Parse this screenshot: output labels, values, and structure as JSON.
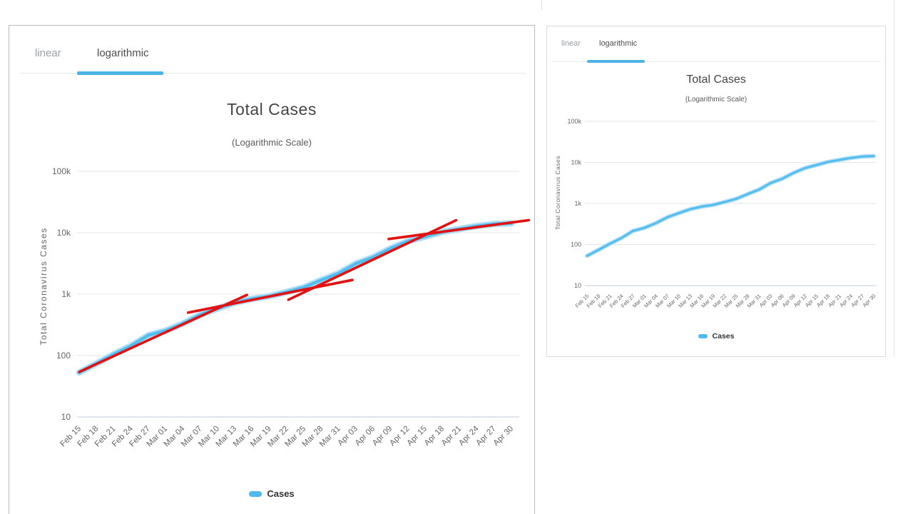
{
  "panels": {
    "left": {
      "tabs": [
        {
          "label": "linear",
          "active": false
        },
        {
          "label": "logarithmic",
          "active": true
        }
      ],
      "title": "Total Cases",
      "subtitle": "(Logarithmic Scale)",
      "y_axis_label": "Total Coronavirus Cases",
      "legend_label": "Cases"
    },
    "right": {
      "tabs": [
        {
          "label": "linear",
          "active": false
        },
        {
          "label": "logarithmic",
          "active": true
        }
      ],
      "title": "Total Cases",
      "subtitle": "(Logarithmic Scale)",
      "y_axis_label": "Total Coronavirus Cases",
      "legend_label": "Cases"
    }
  },
  "colors": {
    "series_blue": "#53bdf0",
    "series_halo": "#aadcf6",
    "tab_underline": "#4db3e6",
    "annotation_red": "#e01212",
    "grid": "#e6e6e6",
    "axis_line": "#ccd6e6",
    "tick_text": "#666666"
  },
  "chart_data": {
    "type": "line",
    "scale": "logarithmic",
    "title": "Total Cases",
    "subtitle": "(Logarithmic Scale)",
    "xlabel": "",
    "ylabel": "Total Coronavirus Cases",
    "ylim": [
      10,
      100000
    ],
    "yticks": [
      "100k",
      "10k",
      "1k",
      "100",
      "10"
    ],
    "grid": true,
    "legend_position": "bottom",
    "categories": [
      "Feb 15",
      "Feb 18",
      "Feb 21",
      "Feb 24",
      "Feb 27",
      "Mar 01",
      "Mar 04",
      "Mar 07",
      "Mar 10",
      "Mar 13",
      "Mar 16",
      "Mar 19",
      "Mar 22",
      "Mar 25",
      "Mar 28",
      "Mar 31",
      "Apr 03",
      "Apr 06",
      "Apr 09",
      "Apr 12",
      "Apr 15",
      "Apr 18",
      "Apr 21",
      "Apr 24",
      "Apr 27",
      "Apr 30"
    ],
    "series": [
      {
        "name": "Cases",
        "color": "#53bdf0",
        "values": [
          53,
          74,
          105,
          144,
          214,
          254,
          331,
          461,
          581,
          725,
          839,
          924,
          1086,
          1291,
          1693,
          2178,
          3139,
          3985,
          5530,
          7255,
          8626,
          10296,
          11512,
          12859,
          13862,
          14281
        ]
      }
    ],
    "annotations_panel": "left",
    "annotations": [
      {
        "type": "line",
        "color": "#e01212",
        "from": {
          "x": 0,
          "y": 54
        },
        "to": {
          "x": 9.7,
          "y": 970
        }
      },
      {
        "type": "line",
        "color": "#e01212",
        "from": {
          "x": 6.3,
          "y": 500
        },
        "to": {
          "x": 15.8,
          "y": 1700
        }
      },
      {
        "type": "line",
        "color": "#e01212",
        "from": {
          "x": 12.1,
          "y": 810
        },
        "to": {
          "x": 21.8,
          "y": 16000
        }
      },
      {
        "type": "line",
        "color": "#e01212",
        "from": {
          "x": 17.9,
          "y": 7900
        },
        "to": {
          "x": 26.0,
          "y": 16000
        }
      }
    ]
  }
}
